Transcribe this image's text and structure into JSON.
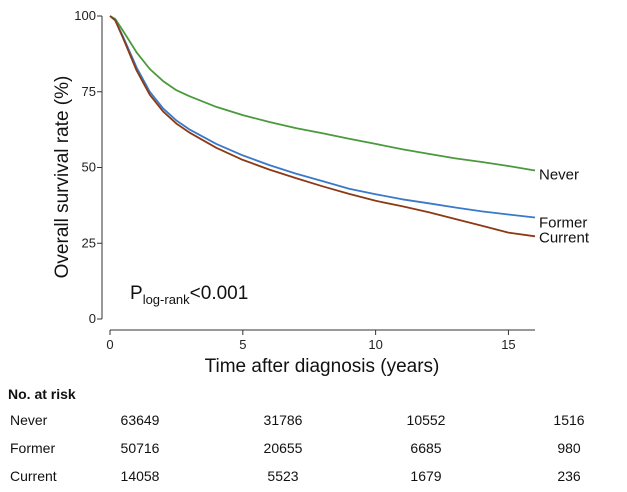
{
  "chart_data": {
    "type": "line",
    "title": "",
    "xlabel": "Time after diagnosis (years)",
    "ylabel": "Overall survival rate (%)",
    "xlim": [
      0,
      16
    ],
    "ylim": [
      0,
      100
    ],
    "x_ticks": [
      0,
      5,
      10,
      15
    ],
    "y_ticks": [
      0,
      25,
      50,
      75,
      100
    ],
    "grid": false,
    "legend": "none",
    "annotation": {
      "text_main": "P",
      "text_sub": "log-rank",
      "text_rest": "<0.001"
    },
    "series": [
      {
        "name": "Never",
        "color": "#4a9a3c",
        "x": [
          0,
          0.2,
          0.5,
          1,
          1.5,
          2,
          2.5,
          3,
          4,
          5,
          6,
          7,
          8,
          9,
          10,
          11,
          12,
          13,
          14,
          15,
          16
        ],
        "y": [
          100,
          99,
          95,
          88,
          82.5,
          78.5,
          75.5,
          73.5,
          70,
          67.3,
          65,
          63,
          61.3,
          59.5,
          57.8,
          56,
          54.5,
          53,
          51.8,
          50.5,
          49
        ]
      },
      {
        "name": "Former",
        "color": "#3a78c8",
        "x": [
          0,
          0.2,
          0.5,
          1,
          1.5,
          2,
          2.5,
          3,
          4,
          5,
          6,
          7,
          8,
          9,
          10,
          11,
          12,
          13,
          14,
          15,
          16
        ],
        "y": [
          100,
          98.5,
          93,
          83,
          75,
          69.5,
          65.5,
          62.5,
          57.8,
          54,
          50.8,
          48,
          45.5,
          43,
          41.2,
          39.5,
          38.2,
          36.8,
          35.5,
          34.5,
          33.5
        ]
      },
      {
        "name": "Current",
        "color": "#8b3a14",
        "x": [
          0,
          0.2,
          0.5,
          1,
          1.5,
          2,
          2.5,
          3,
          4,
          5,
          6,
          7,
          8,
          9,
          10,
          11,
          12,
          13,
          14,
          15,
          16
        ],
        "y": [
          100,
          98.5,
          92.5,
          82,
          74,
          68.5,
          64.5,
          61.5,
          56.5,
          52.5,
          49.3,
          46.5,
          43.8,
          41.3,
          39,
          37.2,
          35.2,
          33,
          30.8,
          28.5,
          27.3
        ]
      }
    ]
  },
  "risk_table": {
    "title": "No. at risk",
    "rows": [
      {
        "name": "Never",
        "values": [
          "63649",
          "31786",
          "10552",
          "1516"
        ]
      },
      {
        "name": "Former",
        "values": [
          "50716",
          "20655",
          "6685",
          "980"
        ]
      },
      {
        "name": "Current",
        "values": [
          "14058",
          "5523",
          "1679",
          "236"
        ]
      }
    ]
  }
}
